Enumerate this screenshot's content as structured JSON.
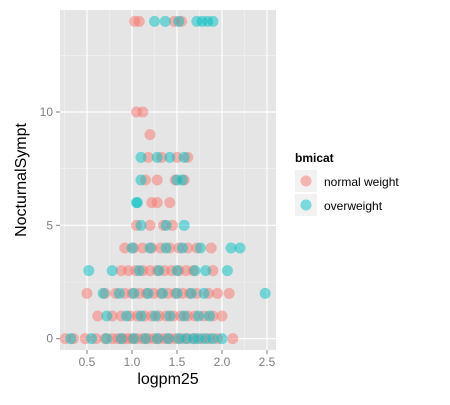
{
  "chart_data": {
    "type": "scatter",
    "xlabel": "logpm25",
    "ylabel": "NocturnalSympt",
    "xlim": [
      0.2,
      2.6
    ],
    "ylim": [
      -0.5,
      14.5
    ],
    "x_ticks": [
      0.5,
      1.0,
      1.5,
      2.0,
      2.5
    ],
    "x_tick_labels": [
      "0.5",
      "1.0",
      "1.5",
      "2.0",
      "2.5"
    ],
    "y_ticks": [
      0,
      5,
      10
    ],
    "y_tick_labels": [
      "0",
      "5",
      "10"
    ],
    "grid": true,
    "legend": {
      "title": "bmicat",
      "position": "right",
      "entries": [
        {
          "label": "normal weight",
          "color": "#F8766D"
        },
        {
          "label": "overweight",
          "color": "#00BFC4"
        }
      ]
    },
    "point_alpha": 0.5,
    "series": [
      {
        "name": "normal weight",
        "color": "#F8766D",
        "points": [
          [
            0.26,
            0
          ],
          [
            0.35,
            0
          ],
          [
            0.48,
            0
          ],
          [
            0.6,
            0
          ],
          [
            0.7,
            0
          ],
          [
            0.78,
            0
          ],
          [
            0.84,
            0
          ],
          [
            0.9,
            0
          ],
          [
            0.95,
            0
          ],
          [
            1.0,
            0
          ],
          [
            1.06,
            0
          ],
          [
            1.12,
            0
          ],
          [
            1.18,
            0
          ],
          [
            1.24,
            0
          ],
          [
            1.3,
            0
          ],
          [
            1.36,
            0
          ],
          [
            1.42,
            0
          ],
          [
            1.48,
            0
          ],
          [
            1.55,
            0
          ],
          [
            1.62,
            0
          ],
          [
            1.7,
            0
          ],
          [
            1.78,
            0
          ],
          [
            1.86,
            0
          ],
          [
            1.95,
            0
          ],
          [
            2.12,
            0
          ],
          [
            0.62,
            1
          ],
          [
            0.78,
            1
          ],
          [
            0.88,
            1
          ],
          [
            0.98,
            1
          ],
          [
            1.06,
            1
          ],
          [
            1.14,
            1
          ],
          [
            1.22,
            1
          ],
          [
            1.3,
            1
          ],
          [
            1.38,
            1
          ],
          [
            1.46,
            1
          ],
          [
            1.54,
            1
          ],
          [
            1.62,
            1
          ],
          [
            1.7,
            1
          ],
          [
            1.8,
            1
          ],
          [
            1.9,
            1
          ],
          [
            2.0,
            1
          ],
          [
            0.5,
            2
          ],
          [
            0.7,
            2
          ],
          [
            0.82,
            2
          ],
          [
            0.92,
            2
          ],
          [
            1.0,
            2
          ],
          [
            1.08,
            2
          ],
          [
            1.16,
            2
          ],
          [
            1.24,
            2
          ],
          [
            1.32,
            2
          ],
          [
            1.4,
            2
          ],
          [
            1.48,
            2
          ],
          [
            1.56,
            2
          ],
          [
            1.64,
            2
          ],
          [
            1.72,
            2
          ],
          [
            1.85,
            2
          ],
          [
            1.95,
            2
          ],
          [
            2.08,
            2
          ],
          [
            0.88,
            3
          ],
          [
            0.96,
            3
          ],
          [
            1.04,
            3
          ],
          [
            1.12,
            3
          ],
          [
            1.2,
            3
          ],
          [
            1.28,
            3
          ],
          [
            1.36,
            3
          ],
          [
            1.44,
            3
          ],
          [
            1.52,
            3
          ],
          [
            1.6,
            3
          ],
          [
            1.68,
            3
          ],
          [
            1.9,
            3
          ],
          [
            0.92,
            4
          ],
          [
            1.02,
            4
          ],
          [
            1.12,
            4
          ],
          [
            1.22,
            4
          ],
          [
            1.32,
            4
          ],
          [
            1.42,
            4
          ],
          [
            1.52,
            4
          ],
          [
            1.62,
            4
          ],
          [
            1.72,
            4
          ],
          [
            1.88,
            4
          ],
          [
            1.05,
            5
          ],
          [
            1.2,
            5
          ],
          [
            1.35,
            5
          ],
          [
            1.45,
            5
          ],
          [
            1.22,
            6
          ],
          [
            1.28,
            6
          ],
          [
            1.42,
            6
          ],
          [
            1.15,
            7
          ],
          [
            1.28,
            7
          ],
          [
            1.48,
            7
          ],
          [
            1.58,
            7
          ],
          [
            1.18,
            8
          ],
          [
            1.33,
            8
          ],
          [
            1.5,
            8
          ],
          [
            1.62,
            8
          ],
          [
            1.05,
            10
          ],
          [
            1.12,
            10
          ],
          [
            1.2,
            9
          ],
          [
            1.03,
            14
          ],
          [
            1.08,
            14
          ],
          [
            1.47,
            14
          ],
          [
            1.55,
            14
          ]
        ]
      },
      {
        "name": "overweight",
        "color": "#00BFC4",
        "points": [
          [
            0.32,
            0
          ],
          [
            0.55,
            0
          ],
          [
            0.72,
            0
          ],
          [
            0.88,
            0
          ],
          [
            1.02,
            0
          ],
          [
            1.15,
            0
          ],
          [
            1.28,
            0
          ],
          [
            1.4,
            0
          ],
          [
            1.52,
            0
          ],
          [
            1.6,
            0
          ],
          [
            1.68,
            0
          ],
          [
            1.74,
            0
          ],
          [
            1.82,
            0
          ],
          [
            1.9,
            0
          ],
          [
            2.0,
            0
          ],
          [
            0.72,
            1
          ],
          [
            0.94,
            1
          ],
          [
            1.1,
            1
          ],
          [
            1.26,
            1
          ],
          [
            1.42,
            1
          ],
          [
            1.58,
            1
          ],
          [
            1.74,
            1
          ],
          [
            1.86,
            1
          ],
          [
            0.68,
            2
          ],
          [
            0.86,
            2
          ],
          [
            1.02,
            2
          ],
          [
            1.18,
            2
          ],
          [
            1.34,
            2
          ],
          [
            1.5,
            2
          ],
          [
            1.66,
            2
          ],
          [
            1.8,
            2
          ],
          [
            2.48,
            2
          ],
          [
            0.52,
            3
          ],
          [
            0.78,
            3
          ],
          [
            1.08,
            3
          ],
          [
            1.3,
            3
          ],
          [
            1.5,
            3
          ],
          [
            1.7,
            3
          ],
          [
            1.82,
            3
          ],
          [
            2.06,
            3
          ],
          [
            1.0,
            4
          ],
          [
            1.2,
            4
          ],
          [
            1.38,
            4
          ],
          [
            1.56,
            4
          ],
          [
            1.76,
            4
          ],
          [
            2.1,
            4
          ],
          [
            2.2,
            4
          ],
          [
            1.1,
            5
          ],
          [
            1.38,
            5
          ],
          [
            1.58,
            5
          ],
          [
            1.05,
            6
          ],
          [
            1.06,
            6
          ],
          [
            1.1,
            7
          ],
          [
            1.5,
            7
          ],
          [
            1.56,
            7
          ],
          [
            1.1,
            8
          ],
          [
            1.28,
            8
          ],
          [
            1.42,
            8
          ],
          [
            1.58,
            8
          ],
          [
            1.25,
            14
          ],
          [
            1.37,
            14
          ],
          [
            1.52,
            14
          ],
          [
            1.72,
            14
          ],
          [
            1.78,
            14
          ],
          [
            1.84,
            14
          ],
          [
            1.9,
            14
          ]
        ]
      }
    ]
  }
}
